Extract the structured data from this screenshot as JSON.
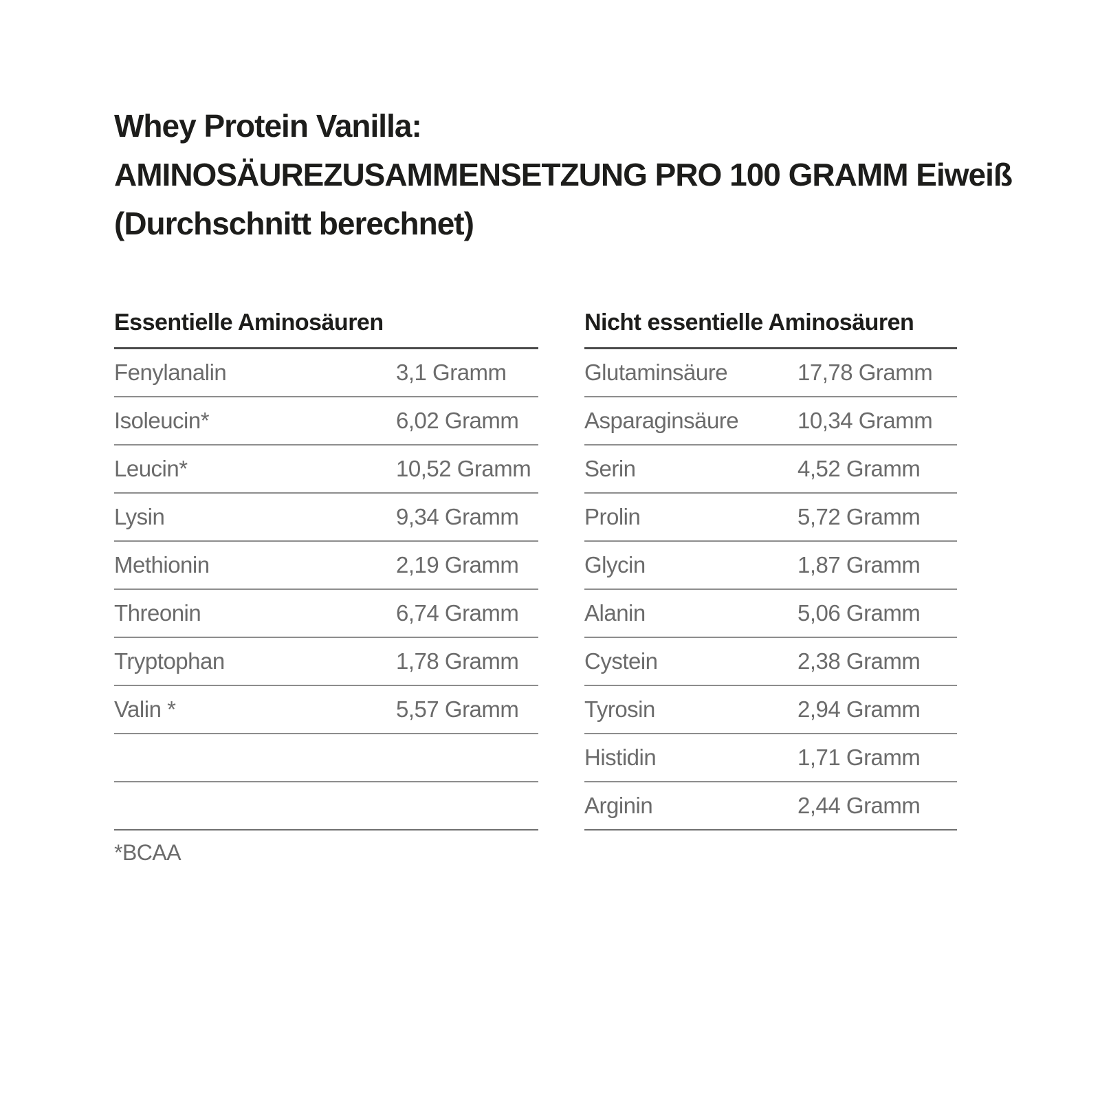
{
  "title": {
    "lines": [
      "Whey Protein Vanilla:",
      "AMINOSÄUREZUSAMMENSETZUNG PRO 100 GRAMM Eiweiß",
      "(Durchschnitt berechnet)"
    ]
  },
  "tables": {
    "essential": {
      "header": "Essentielle Aminosäuren",
      "rows": [
        {
          "name": "Fenylanalin",
          "value": "3,1 Gramm"
        },
        {
          "name": "Isoleucin*",
          "value": "6,02 Gramm"
        },
        {
          "name": "Leucin*",
          "value": "10,52 Gramm"
        },
        {
          "name": "Lysin",
          "value": "9,34 Gramm"
        },
        {
          "name": "Methionin",
          "value": "2,19 Gramm"
        },
        {
          "name": "Threonin",
          "value": "6,74 Gramm"
        },
        {
          "name": "Tryptophan",
          "value": "1,78 Gramm"
        },
        {
          "name": "Valin *",
          "value": "5,57 Gramm"
        },
        {
          "name": "",
          "value": ""
        },
        {
          "name": "",
          "value": ""
        }
      ]
    },
    "non_essential": {
      "header": "Nicht essentielle Aminosäuren",
      "rows": [
        {
          "name": "Glutaminsäure",
          "value": "17,78 Gramm"
        },
        {
          "name": "Asparaginsäure",
          "value": "10,34 Gramm"
        },
        {
          "name": "Serin",
          "value": "4,52 Gramm"
        },
        {
          "name": "Prolin",
          "value": "5,72 Gramm"
        },
        {
          "name": "Glycin",
          "value": "1,87 Gramm"
        },
        {
          "name": "Alanin",
          "value": "5,06 Gramm"
        },
        {
          "name": "Cystein",
          "value": "2,38 Gramm"
        },
        {
          "name": "Tyrosin",
          "value": "2,94 Gramm"
        },
        {
          "name": "Histidin",
          "value": "1,71 Gramm"
        },
        {
          "name": "Arginin",
          "value": "2,44 Gramm"
        }
      ]
    }
  },
  "footnote": "*BCAA",
  "colors": {
    "background": "#ffffff",
    "heading_text": "#1d1d1b",
    "body_text": "#6b6b6b",
    "header_rule": "#4c4c4c",
    "row_rule": "#8d8d8d"
  }
}
